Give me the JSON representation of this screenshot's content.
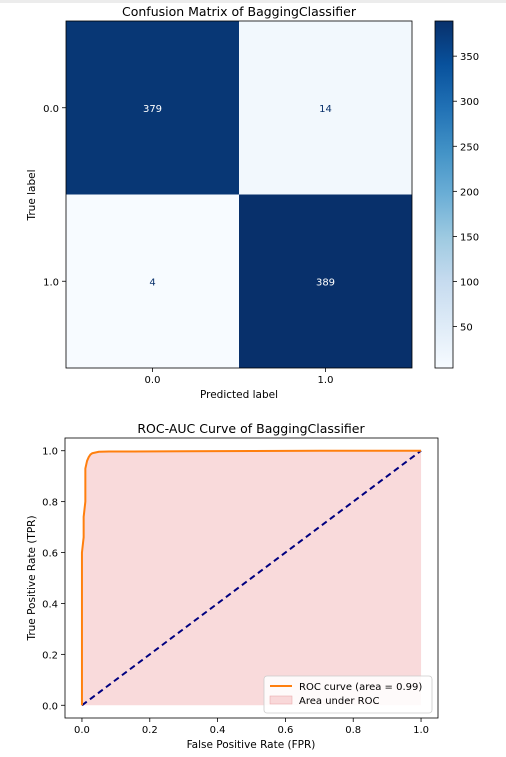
{
  "chart_data": [
    {
      "type": "heatmap",
      "title": "Confusion Matrix of BaggingClassifier",
      "xlabel": "Predicted label",
      "ylabel": "True label",
      "x_categories": [
        "0.0",
        "1.0"
      ],
      "y_categories": [
        "0.0",
        "1.0"
      ],
      "values": [
        [
          379,
          14
        ],
        [
          4,
          389
        ]
      ],
      "colormap": "Blues",
      "colorbar": {
        "min": 4,
        "max": 389,
        "ticks": [
          50,
          100,
          150,
          200,
          250,
          300,
          350
        ]
      }
    },
    {
      "type": "line",
      "title": "ROC-AUC Curve of BaggingClassifier",
      "xlabel": "False Positive Rate (FPR)",
      "ylabel": "True Positive Rate (TPR)",
      "xlim": [
        -0.05,
        1.05
      ],
      "ylim": [
        -0.05,
        1.05
      ],
      "xticks": [
        "0.0",
        "0.2",
        "0.4",
        "0.6",
        "0.8",
        "1.0"
      ],
      "yticks": [
        "0.0",
        "0.2",
        "0.4",
        "0.6",
        "0.8",
        "1.0"
      ],
      "series": [
        {
          "name": "ROC curve (area = 0.99)",
          "color": "#ff7f0e",
          "x": [
            0.0,
            0.0,
            0.005,
            0.005,
            0.01,
            0.01,
            0.015,
            0.02,
            0.025,
            0.03,
            0.04,
            0.05,
            0.08,
            0.15,
            0.3,
            0.5,
            0.7,
            1.0
          ],
          "y": [
            0.0,
            0.6,
            0.66,
            0.74,
            0.8,
            0.93,
            0.96,
            0.975,
            0.985,
            0.99,
            0.993,
            0.996,
            0.997,
            0.997,
            0.998,
            0.999,
            1.0,
            1.0
          ]
        },
        {
          "name": "",
          "color": "#000080",
          "style": "dashed",
          "x": [
            0.0,
            1.0
          ],
          "y": [
            0.0,
            1.0
          ]
        }
      ],
      "fill_label": "Area under ROC",
      "fill_color": "#f4b6b8",
      "legend_position": "lower-right"
    }
  ]
}
